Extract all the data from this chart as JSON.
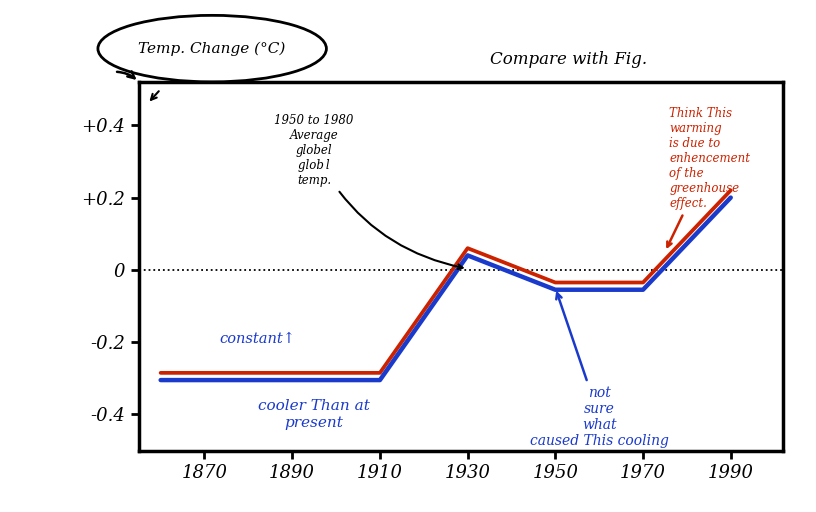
{
  "x_data": [
    1860,
    1910,
    1930,
    1950,
    1970,
    1990
  ],
  "blue_y": [
    -0.305,
    -0.305,
    0.04,
    -0.055,
    -0.055,
    0.2
  ],
  "red_y": [
    -0.285,
    -0.285,
    0.06,
    -0.035,
    -0.035,
    0.22
  ],
  "x_ticks": [
    1870,
    1890,
    1910,
    1930,
    1950,
    1970,
    1990
  ],
  "y_ticks": [
    -0.4,
    -0.2,
    0.0,
    0.2,
    0.4
  ],
  "y_tick_labels": [
    "-0.4",
    "-0.2",
    "0",
    "+0.2",
    "+0.4"
  ],
  "x_tick_labels": [
    "1870",
    "1890",
    "1910",
    "1930",
    "1950",
    "1970",
    "1990"
  ],
  "xlim": [
    1855,
    2002
  ],
  "ylim": [
    -0.5,
    0.52
  ],
  "background_color": "#ffffff",
  "blue_color": "#1a3acc",
  "red_color": "#cc2200",
  "line_width": 3.2,
  "bubble_text": "Temp. Change (°C)",
  "compare_text": "Compare with Fig.",
  "avg_label": "1950 to 1980\nAverage\nglobel\nglob l\ntemp.",
  "constant_text": "constant↑",
  "cooler_text": "cooler Than at\npresent",
  "not_sure_text": "not\nsure\nwhat\ncaused This cooling",
  "think_text": "Think This\nwarming\nis due to\nenhencement\nof the\ngreenhouse\neffect."
}
